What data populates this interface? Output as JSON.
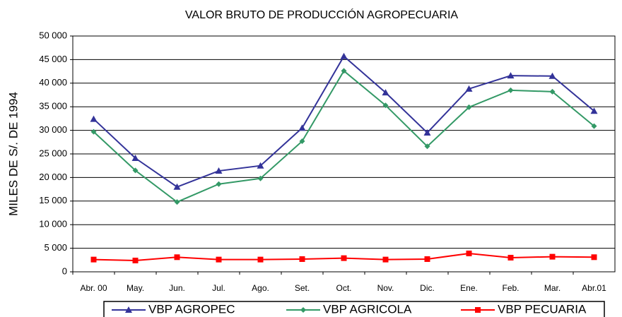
{
  "chart_data": {
    "type": "line",
    "title": "VALOR BRUTO DE PRODUCCIÓN AGROPECUARIA",
    "y_label": "MILES DE S/. DE 1994",
    "categories": [
      "Abr. 00",
      "May.",
      "Jun.",
      "Jul.",
      "Ago.",
      "Set.",
      "Oct.",
      "Nov.",
      "Dic.",
      "Ene.",
      "Feb.",
      "Mar.",
      "Abr.01"
    ],
    "series": [
      {
        "name": "VBP AGROPEC",
        "color": "#333399",
        "marker": "triangle",
        "values": [
          32400,
          24100,
          18000,
          21400,
          22500,
          30500,
          45700,
          38000,
          29500,
          38800,
          41600,
          41500,
          34100
        ]
      },
      {
        "name": "VBP AGRICOLA",
        "color": "#339966",
        "marker": "diamond",
        "values": [
          29700,
          21500,
          14800,
          18600,
          19800,
          27700,
          42600,
          35300,
          26600,
          34900,
          38500,
          38200,
          30900
        ]
      },
      {
        "name": "VBP PECUARIA",
        "color": "#ff0000",
        "marker": "square",
        "values": [
          2600,
          2400,
          3100,
          2600,
          2600,
          2700,
          2900,
          2600,
          2700,
          3900,
          3000,
          3200,
          3100
        ]
      }
    ],
    "ylim": [
      0,
      50000
    ],
    "yticks": [
      0,
      {
        "value": 5000,
        "label": "5 000"
      },
      {
        "value": 10000,
        "label": "10 000"
      },
      {
        "value": 15000,
        "label": "15 000"
      },
      {
        "value": 20000,
        "label": "20 000"
      },
      {
        "value": 25000,
        "label": "25 000"
      },
      {
        "value": 30000,
        "label": "30 000"
      },
      {
        "value": 35000,
        "label": "35 000"
      },
      {
        "value": 40000,
        "label": "40 000"
      },
      {
        "value": 45000,
        "label": "45 000"
      },
      {
        "value": 50000,
        "label": "50 000"
      }
    ],
    "grid": true,
    "legend": "bottom"
  }
}
